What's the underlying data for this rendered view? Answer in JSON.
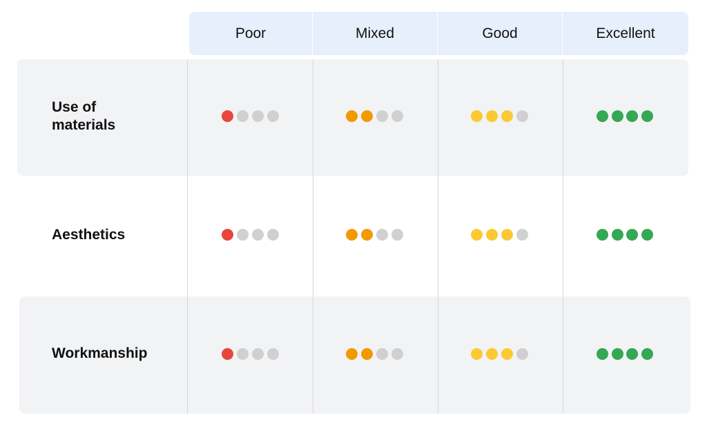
{
  "table": {
    "columns": [
      {
        "label": "Poor",
        "color": "#e8453c"
      },
      {
        "label": "Mixed",
        "color": "#f29900"
      },
      {
        "label": "Good",
        "color": "#fcc934"
      },
      {
        "label": "Excellent",
        "color": "#34a853"
      }
    ],
    "dot_count": 4,
    "empty_color": "#d0d0d0",
    "rows": [
      {
        "label": "Use of materials",
        "ratings": [
          1,
          2,
          3,
          4
        ]
      },
      {
        "label": "Aesthetics",
        "ratings": [
          1,
          2,
          3,
          4
        ]
      },
      {
        "label": "Workmanship",
        "ratings": [
          1,
          2,
          3,
          4
        ]
      }
    ]
  }
}
